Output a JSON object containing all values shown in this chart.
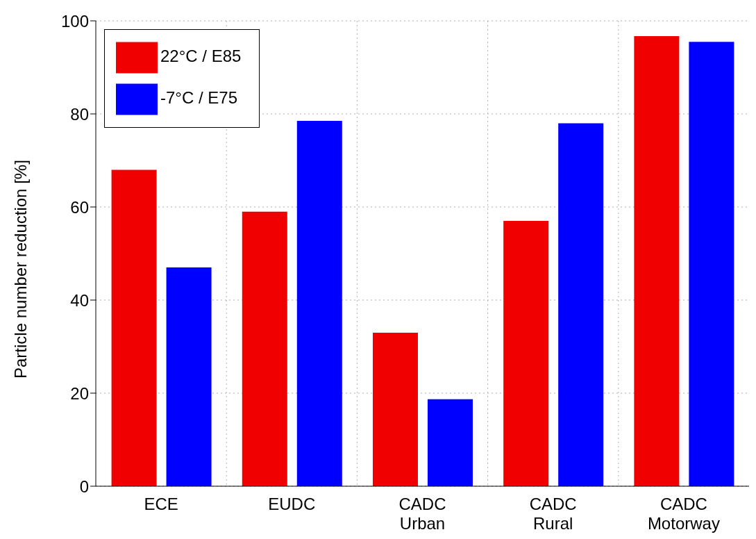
{
  "chart_data": {
    "type": "bar",
    "ylabel": "Particle number reduction [%]",
    "categories": [
      "ECE",
      "EUDC",
      "CADC\nUrban",
      "CADC\nRural",
      "CADC\nMotorway"
    ],
    "series": [
      {
        "name": "22°C / E85",
        "color": "#f00000",
        "values": [
          68,
          59,
          33,
          57,
          96.7
        ]
      },
      {
        "name": "-7°C / E75",
        "color": "#0000ff",
        "values": [
          47,
          78.5,
          18.7,
          78,
          95.5
        ]
      }
    ],
    "ylim": [
      0,
      100
    ],
    "yticks": [
      0,
      20,
      40,
      60,
      80,
      100
    ],
    "grid": true,
    "legend": "top left"
  }
}
